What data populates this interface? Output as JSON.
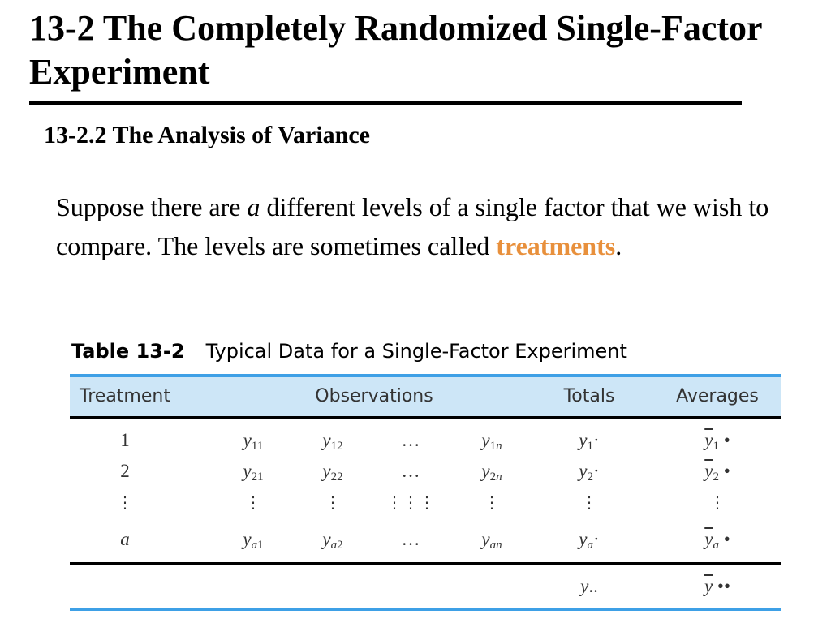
{
  "slide": {
    "title": "13-2 The Completely Randomized Single-Factor Experiment",
    "subtitle": "13-2.2 The Analysis of Variance",
    "body": {
      "part1": "Suppose there are ",
      "var_a": "a",
      "part2": " different levels of a single factor that we wish to compare.  The levels are sometimes called ",
      "highlight": "treatments",
      "part3": "."
    },
    "colors": {
      "accent": "#e8903c",
      "table_rule": "#3ea0e6",
      "header_fill": "#cde6f7",
      "text": "#000000"
    }
  },
  "table": {
    "caption_label": "Table 13-2",
    "caption_text": "Typical Data for a Single-Factor Experiment",
    "headers": {
      "treatment": "Treatment",
      "observations": "Observations",
      "totals": "Totals",
      "averages": "Averages"
    },
    "rows": [
      {
        "treatment": "1",
        "obs": [
          [
            "y",
            "11"
          ],
          [
            "y",
            "12"
          ],
          [
            "…",
            ""
          ],
          [
            "y",
            "1n"
          ]
        ],
        "total": "1",
        "avg": "1"
      },
      {
        "treatment": "2",
        "obs": [
          [
            "y",
            "21"
          ],
          [
            "y",
            "22"
          ],
          [
            "…",
            ""
          ],
          [
            "y",
            "2n"
          ]
        ],
        "total": "2",
        "avg": "2"
      },
      {
        "treatment": "⋮",
        "obs": [
          [
            "⋮",
            ""
          ],
          [
            "⋮",
            ""
          ],
          [
            "⋮⋮⋮",
            ""
          ],
          [
            "⋮",
            ""
          ]
        ],
        "total": "⋮",
        "avg": "⋮"
      },
      {
        "treatment": "a",
        "obs": [
          [
            "y",
            "a1"
          ],
          [
            "y",
            "a2"
          ],
          [
            "…",
            ""
          ],
          [
            "y",
            "an"
          ]
        ],
        "total": "a",
        "avg": "a"
      }
    ],
    "summary": {
      "total": "y..",
      "avg": "y ••"
    }
  }
}
